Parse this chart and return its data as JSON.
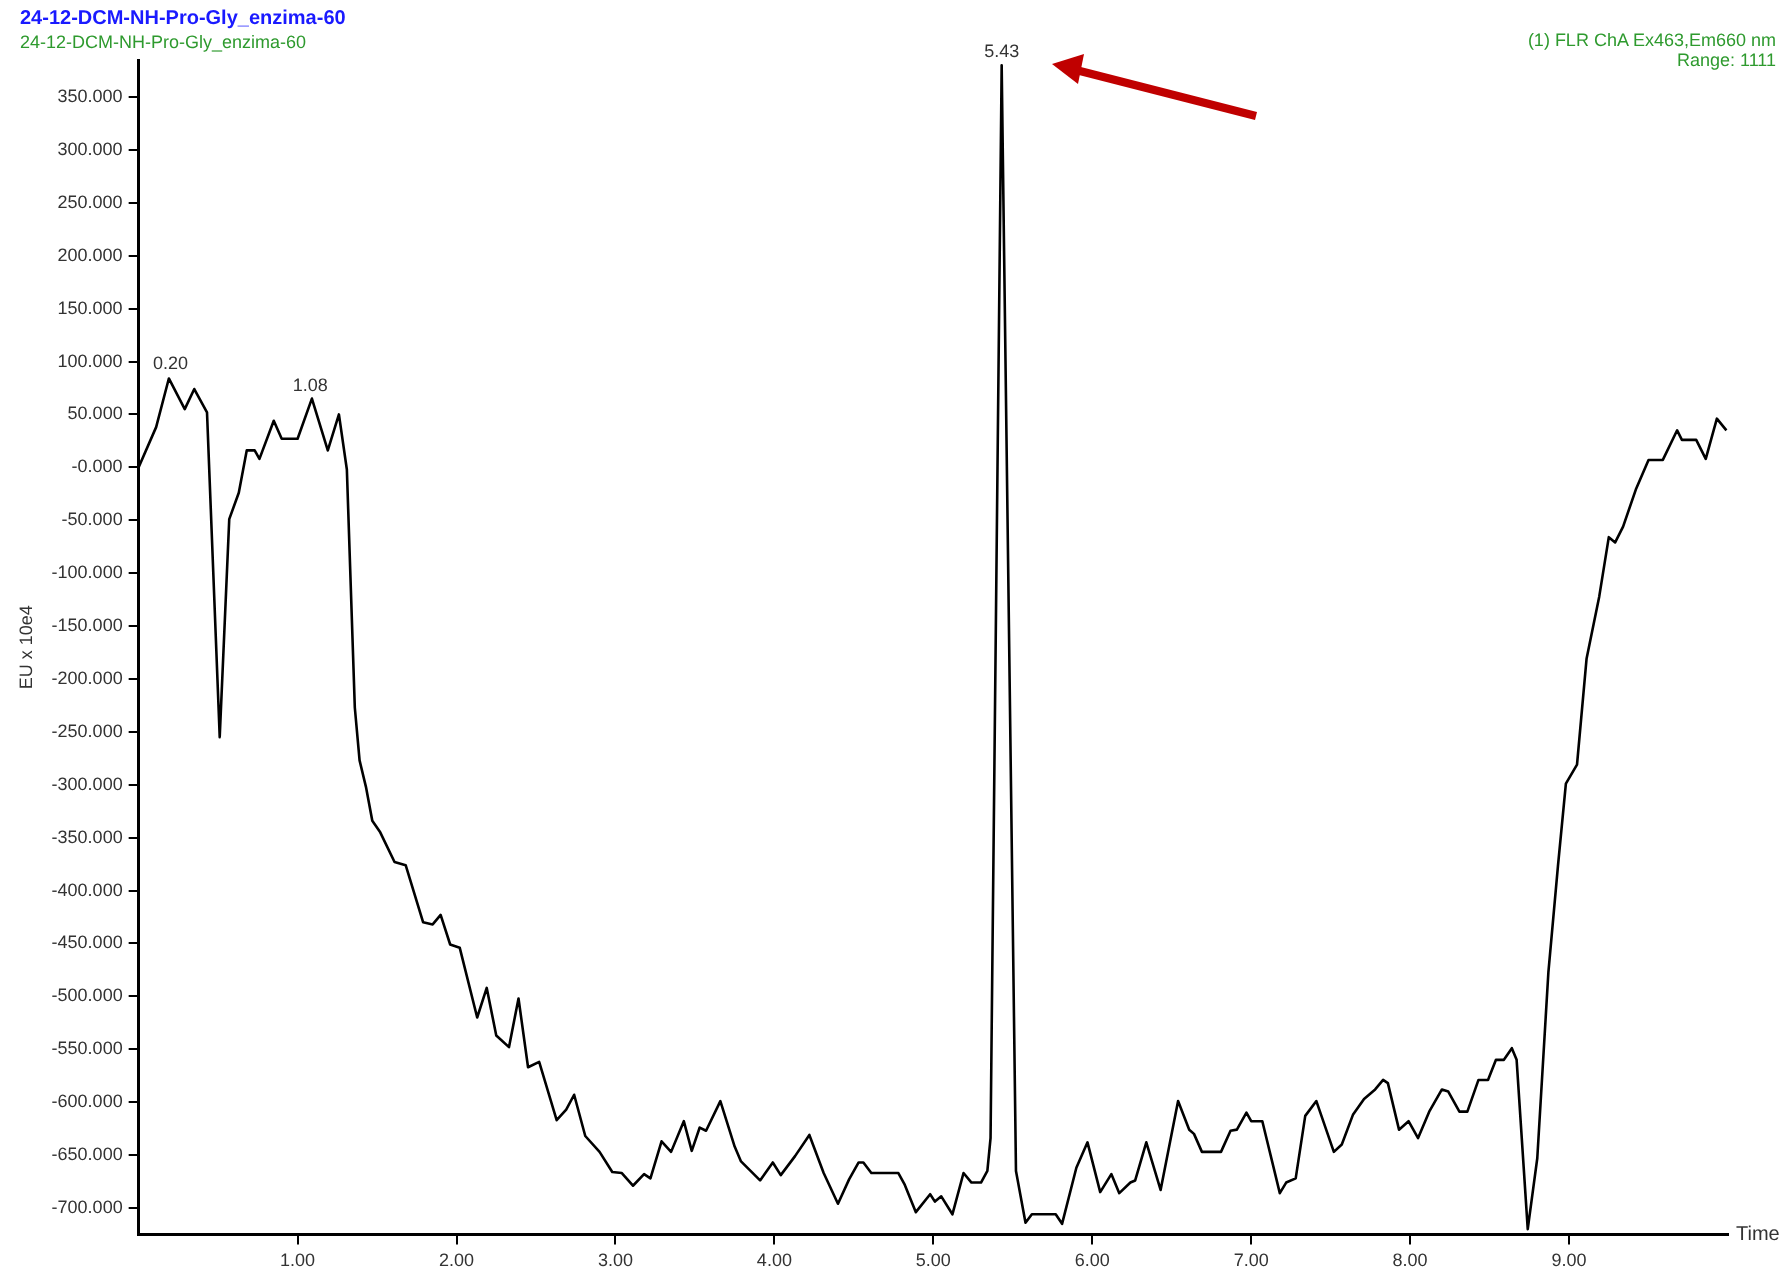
{
  "chart_data": {
    "type": "line",
    "title": "24-12-DCM-NH-Pro-Gly_enzima-60",
    "subtitle": "24-12-DCM-NH-Pro-Gly_enzima-60",
    "xlabel": "Time",
    "ylabel": "EU x 10e4",
    "annotations": [
      "(1) FLR ChA Ex463,Em660 nm",
      "Range: 1111",
      {
        "text": "0.20",
        "x": 0.2,
        "y": 85
      },
      {
        "text": "1.08",
        "x": 1.08,
        "y": 65
      },
      {
        "text": "5.43",
        "x": 5.43,
        "y": 380
      }
    ],
    "x": [
      0,
      0.11,
      0.19,
      0.29,
      0.35,
      0.43,
      0.51,
      0.57,
      0.63,
      0.68,
      0.73,
      0.76,
      0.85,
      0.9,
      1.0,
      1.09,
      1.19,
      1.26,
      1.31,
      1.36,
      1.39,
      1.43,
      1.47,
      1.52,
      1.61,
      1.68,
      1.79,
      1.85,
      1.9,
      1.96,
      2.02,
      2.13,
      2.19,
      2.25,
      2.33,
      2.39,
      2.45,
      2.52,
      2.63,
      2.69,
      2.74,
      2.81,
      2.9,
      2.98,
      3.04,
      3.11,
      3.18,
      3.22,
      3.29,
      3.35,
      3.43,
      3.48,
      3.53,
      3.57,
      3.66,
      3.75,
      3.79,
      3.91,
      3.99,
      4.04,
      4.13,
      4.22,
      4.31,
      4.4,
      4.47,
      4.53,
      4.56,
      4.61,
      4.78,
      4.82,
      4.89,
      4.98,
      5.01,
      5.05,
      5.12,
      5.19,
      5.24,
      5.3,
      5.34,
      5.36,
      5.43,
      5.52,
      5.58,
      5.62,
      5.77,
      5.81,
      5.9,
      5.97,
      6.05,
      6.12,
      6.17,
      6.24,
      6.27,
      6.34,
      6.43,
      6.54,
      6.61,
      6.64,
      6.69,
      6.81,
      6.87,
      6.91,
      6.97,
      7.0,
      7.07,
      7.18,
      7.22,
      7.28,
      7.34,
      7.41,
      7.52,
      7.57,
      7.64,
      7.71,
      7.78,
      7.83,
      7.86,
      7.93,
      7.99,
      8.05,
      8.12,
      8.2,
      8.24,
      8.31,
      8.36,
      8.43,
      8.49,
      8.54,
      8.59,
      8.64,
      8.67,
      8.74,
      8.8,
      8.87,
      8.93,
      8.98,
      9.05,
      9.11,
      9.19,
      9.25,
      9.29,
      9.34,
      9.42,
      9.5,
      9.59,
      9.68,
      9.71,
      9.8,
      9.86,
      9.93,
      9.99
    ],
    "series": [
      {
        "color": "#000000",
        "values": [
          0,
          38,
          84,
          55,
          74,
          52,
          -255,
          -49,
          -24,
          16,
          16,
          8,
          44,
          27,
          27,
          65,
          16,
          50,
          -2,
          -227,
          -277,
          -302,
          -334,
          -345,
          -373,
          -376,
          -430,
          -432,
          -423,
          -451,
          -454,
          -520,
          -492,
          -537,
          -548,
          -502,
          -567,
          -562,
          -617,
          -607,
          -593,
          -632,
          -647,
          -666,
          -667,
          -679,
          -668,
          -672,
          -637,
          -647,
          -618,
          -646,
          -624,
          -627,
          -599,
          -642,
          -656,
          -674,
          -657,
          -669,
          -651,
          -631,
          -667,
          -696,
          -673,
          -657,
          -657,
          -667,
          -667,
          -678,
          -704,
          -687,
          -694,
          -689,
          -706,
          -667,
          -676,
          -676,
          -665,
          -634,
          380,
          -665,
          -714,
          -706,
          -706,
          -715,
          -662,
          -638,
          -685,
          -668,
          -686,
          -676,
          -674,
          -638,
          -683,
          -599,
          -626,
          -630,
          -647,
          -647,
          -627,
          -626,
          -610,
          -618,
          -618,
          -686,
          -676,
          -672,
          -613,
          -599,
          -647,
          -640,
          -612,
          -597,
          -588,
          -579,
          -582,
          -626,
          -618,
          -634,
          -609,
          -588,
          -590,
          -609,
          -609,
          -579,
          -579,
          -560,
          -560,
          -549,
          -560,
          -720,
          -653,
          -477,
          -377,
          -299,
          -281,
          -181,
          -122,
          -66,
          -71,
          -56,
          -21,
          7,
          7,
          35,
          26,
          26,
          8,
          46,
          35
        ]
      }
    ],
    "xlim": [
      0,
      10
    ],
    "ylim": [
      -725,
      385
    ],
    "xticks": [
      {
        "value": 1,
        "label": "1.00"
      },
      {
        "value": 2,
        "label": "2.00"
      },
      {
        "value": 3,
        "label": "3.00"
      },
      {
        "value": 4,
        "label": "4.00"
      },
      {
        "value": 5,
        "label": "5.00"
      },
      {
        "value": 6,
        "label": "6.00"
      },
      {
        "value": 7,
        "label": "7.00"
      },
      {
        "value": 8,
        "label": "8.00"
      },
      {
        "value": 9,
        "label": "9.00"
      }
    ],
    "yticks": [
      {
        "value": -700,
        "label": "-700.000"
      },
      {
        "value": -650,
        "label": "-650.000"
      },
      {
        "value": -600,
        "label": "-600.000"
      },
      {
        "value": -550,
        "label": "-550.000"
      },
      {
        "value": -500,
        "label": "-500.000"
      },
      {
        "value": -450,
        "label": "-450.000"
      },
      {
        "value": -400,
        "label": "-400.000"
      },
      {
        "value": -350,
        "label": "-350.000"
      },
      {
        "value": -300,
        "label": "-300.000"
      },
      {
        "value": -250,
        "label": "-250.000"
      },
      {
        "value": -200,
        "label": "-200.000"
      },
      {
        "value": -150,
        "label": "-150.000"
      },
      {
        "value": -100,
        "label": "-100.000"
      },
      {
        "value": -50,
        "label": "-50.000"
      },
      {
        "value": 0,
        "label": "-0.000"
      },
      {
        "value": 50,
        "label": "50.000"
      },
      {
        "value": 100,
        "label": "100.000"
      },
      {
        "value": 150,
        "label": "150.000"
      },
      {
        "value": 200,
        "label": "200.000"
      },
      {
        "value": 250,
        "label": "250.000"
      },
      {
        "value": 300,
        "label": "300.000"
      },
      {
        "value": 350,
        "label": "350.000"
      }
    ],
    "grid": false,
    "legend": false,
    "marker": "none",
    "line_style": "solid"
  }
}
